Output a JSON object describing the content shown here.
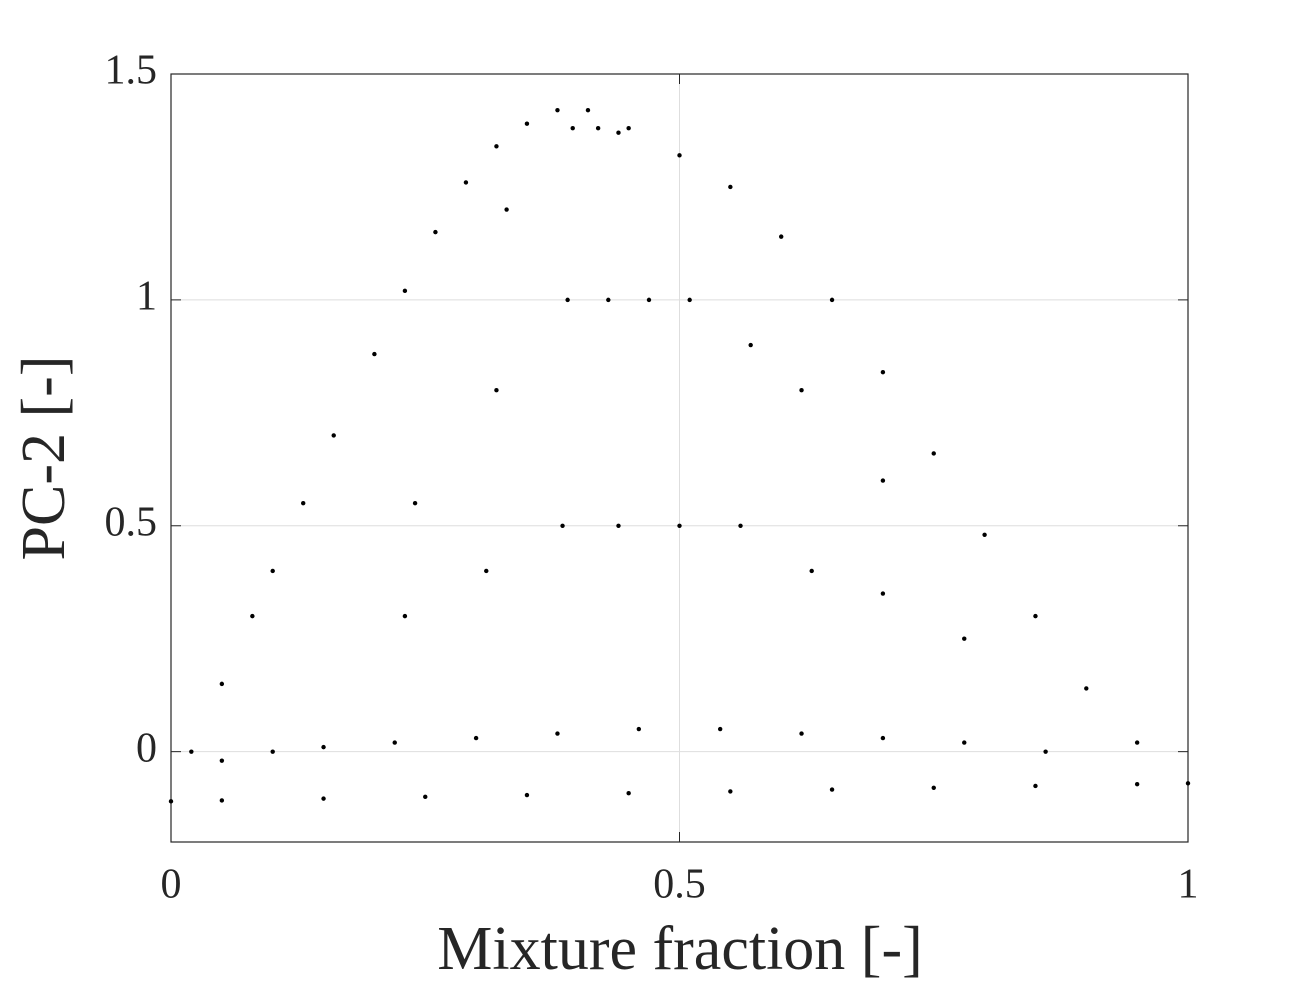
{
  "chart_data": {
    "type": "scatter",
    "x_label": "Mixture fraction [-]",
    "y_label": "PC-2 [-]",
    "color": "#000000",
    "grid": true,
    "xlim": [
      0,
      1
    ],
    "xticks": [
      0,
      0.5,
      1
    ],
    "ylim": [
      -0.2,
      1.5
    ],
    "yticks": [
      0,
      0.5,
      1,
      1.5
    ],
    "x": [
      0,
      0.02,
      0.05,
      0.08,
      0.1,
      0.13,
      0.16,
      0.2,
      0.23,
      0.26,
      0.29,
      0.32,
      0.35,
      0.38,
      0.41,
      0.45,
      0.5,
      0.55,
      0.6,
      0.65,
      0.7,
      0.75,
      0.8,
      0.85,
      0.9,
      0.95,
      1,
      0.05,
      0.15,
      0.25,
      0.35,
      0.45,
      0.55,
      0.65,
      0.75,
      0.85,
      0.95,
      0.22,
      0.23,
      0.24,
      0.3,
      0.31,
      0.32,
      0.33,
      0.38,
      0.385,
      0.39,
      0.395,
      0.46,
      0.44,
      0.43,
      0.42,
      0.54,
      0.5,
      0.47,
      0.44,
      0.62,
      0.56,
      0.51,
      0.7,
      0.63,
      0.57,
      0.78,
      0.7,
      0.62,
      0.86,
      0.78,
      0.7,
      0.05,
      0.1,
      0.15
    ],
    "values": [
      -0.11,
      0,
      0.15,
      0.3,
      0.4,
      0.55,
      0.7,
      0.88,
      1.02,
      1.15,
      1.26,
      1.34,
      1.39,
      1.42,
      1.42,
      1.38,
      1.32,
      1.25,
      1.14,
      1,
      0.84,
      0.66,
      0.48,
      0.3,
      0.14,
      0.02,
      -0.07,
      -0.108,
      -0.104,
      -0.1,
      -0.096,
      -0.092,
      -0.088,
      -0.084,
      -0.08,
      -0.076,
      -0.072,
      0.02,
      0.3,
      0.55,
      0.03,
      0.4,
      0.8,
      1.2,
      0.04,
      0.5,
      1,
      1.38,
      0.05,
      0.5,
      1,
      1.38,
      0.05,
      0.5,
      1,
      1.37,
      0.04,
      0.5,
      1,
      0.03,
      0.4,
      0.9,
      0.02,
      0.35,
      0.8,
      0,
      0.25,
      0.6,
      -0.02,
      0,
      0.01
    ]
  }
}
